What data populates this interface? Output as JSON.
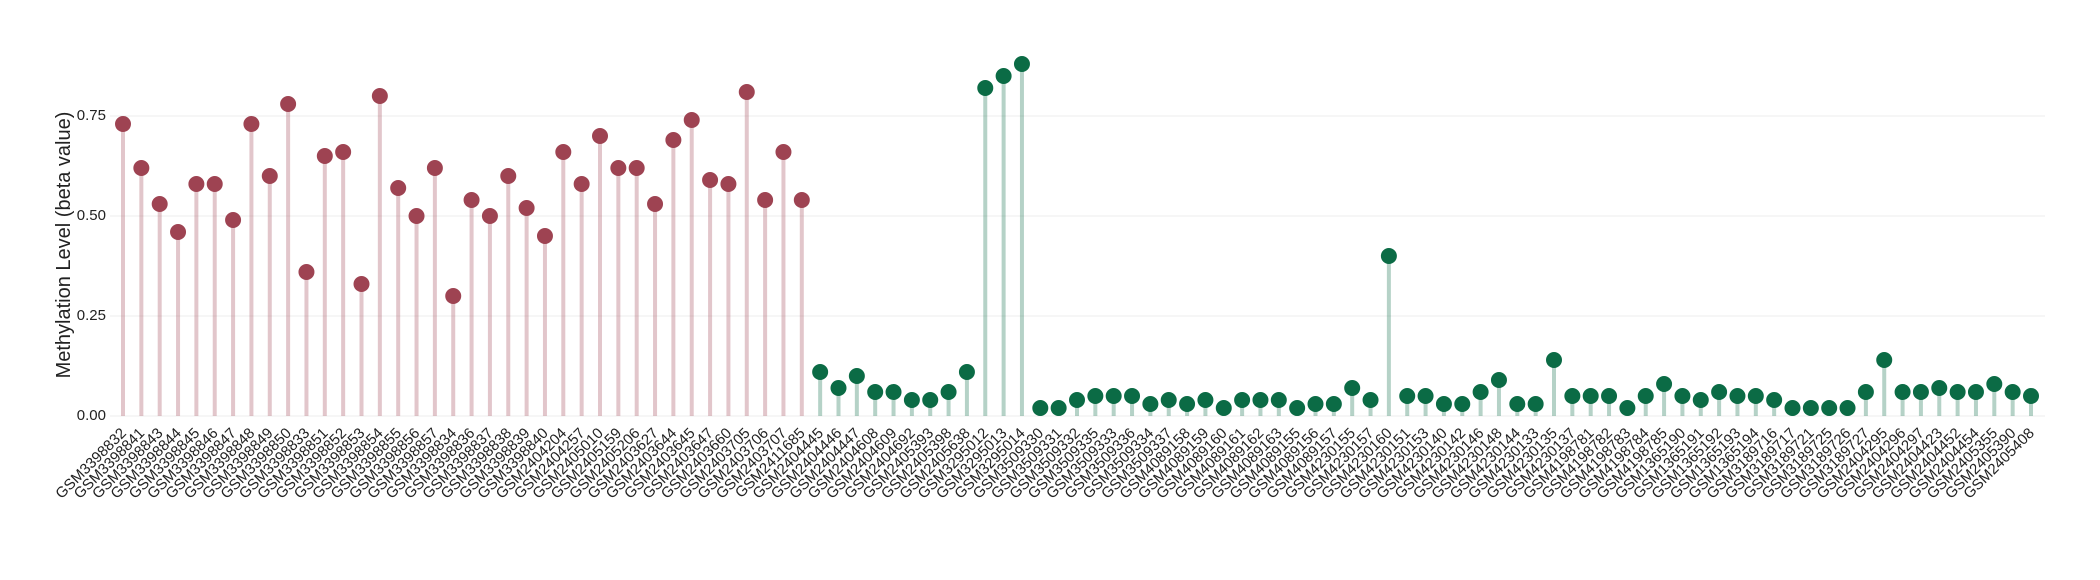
{
  "chart_data": {
    "type": "lollipop",
    "y_label": "Methylation Level (beta value)",
    "categories": [
      "GSM3398832",
      "GSM3398841",
      "GSM3398843",
      "GSM3398844",
      "GSM3398845",
      "GSM3398846",
      "GSM3398847",
      "GSM3398848",
      "GSM3398849",
      "GSM3398850",
      "GSM3398833",
      "GSM3398851",
      "GSM3398852",
      "GSM3398853",
      "GSM3398854",
      "GSM3398855",
      "GSM3398856",
      "GSM3398857",
      "GSM3398834",
      "GSM3398836",
      "GSM3398837",
      "GSM3398838",
      "GSM3398839",
      "GSM3398840",
      "GSM2404204",
      "GSM2404257",
      "GSM2405010",
      "GSM2405159",
      "GSM2405206",
      "GSM2403627",
      "GSM2403644",
      "GSM2403645",
      "GSM2403647",
      "GSM2403660",
      "GSM2403705",
      "GSM2403706",
      "GSM2403707",
      "GSM2411685",
      "GSM2404445",
      "GSM2404446",
      "GSM2404447",
      "GSM2404608",
      "GSM2404609",
      "GSM2404692",
      "GSM2405393",
      "GSM2405398",
      "GSM2405638",
      "GSM3295012",
      "GSM3295013",
      "GSM3295014",
      "GSM3509330",
      "GSM3509331",
      "GSM3509332",
      "GSM3509335",
      "GSM3509333",
      "GSM3509336",
      "GSM3509334",
      "GSM3509337",
      "GSM4089158",
      "GSM4089159",
      "GSM4089160",
      "GSM4089161",
      "GSM4089162",
      "GSM4089163",
      "GSM4089155",
      "GSM4089156",
      "GSM4089157",
      "GSM4230155",
      "GSM4230157",
      "GSM4230160",
      "GSM4230151",
      "GSM4230153",
      "GSM4230140",
      "GSM4230142",
      "GSM4230146",
      "GSM4230148",
      "GSM4230144",
      "GSM4230133",
      "GSM4230135",
      "GSM4230137",
      "GSM4198781",
      "GSM4198782",
      "GSM4198783",
      "GSM4198784",
      "GSM4198785",
      "GSM1365190",
      "GSM1365191",
      "GSM1365192",
      "GSM1365193",
      "GSM1365194",
      "GSM3189716",
      "GSM3189717",
      "GSM3189721",
      "GSM3189725",
      "GSM3189726",
      "GSM3189727",
      "GSM2404295",
      "GSM2404296",
      "GSM2404297",
      "GSM2404423",
      "GSM2404452",
      "GSM2404454",
      "GSM2405355",
      "GSM2405390",
      "GSM2405408"
    ],
    "values": [
      0.73,
      0.62,
      0.53,
      0.46,
      0.58,
      0.58,
      0.49,
      0.73,
      0.6,
      0.78,
      0.36,
      0.65,
      0.66,
      0.33,
      0.8,
      0.57,
      0.5,
      0.62,
      0.3,
      0.54,
      0.5,
      0.6,
      0.52,
      0.45,
      0.66,
      0.58,
      0.7,
      0.62,
      0.62,
      0.53,
      0.69,
      0.74,
      0.59,
      0.58,
      0.81,
      0.54,
      0.66,
      0.54,
      0.11,
      0.07,
      0.1,
      0.06,
      0.06,
      0.04,
      0.04,
      0.06,
      0.11,
      0.82,
      0.85,
      0.88,
      0.02,
      0.02,
      0.04,
      0.05,
      0.05,
      0.05,
      0.03,
      0.04,
      0.03,
      0.04,
      0.02,
      0.04,
      0.04,
      0.04,
      0.02,
      0.03,
      0.03,
      0.07,
      0.04,
      0.4,
      0.05,
      0.05,
      0.03,
      0.03,
      0.06,
      0.09,
      0.03,
      0.03,
      0.14,
      0.05,
      0.05,
      0.05,
      0.02,
      0.05,
      0.08,
      0.05,
      0.04,
      0.06,
      0.05,
      0.05,
      0.04,
      0.02,
      0.02,
      0.02,
      0.02,
      0.06,
      0.14,
      0.06,
      0.06,
      0.07,
      0.06,
      0.06,
      0.08,
      0.06,
      0.05
    ],
    "colors": [
      "#9e4352",
      "#9e4352",
      "#9e4352",
      "#9e4352",
      "#9e4352",
      "#9e4352",
      "#9e4352",
      "#9e4352",
      "#9e4352",
      "#9e4352",
      "#9e4352",
      "#9e4352",
      "#9e4352",
      "#9e4352",
      "#9e4352",
      "#9e4352",
      "#9e4352",
      "#9e4352",
      "#9e4352",
      "#9e4352",
      "#9e4352",
      "#9e4352",
      "#9e4352",
      "#9e4352",
      "#9e4352",
      "#9e4352",
      "#9e4352",
      "#9e4352",
      "#9e4352",
      "#9e4352",
      "#9e4352",
      "#9e4352",
      "#9e4352",
      "#9e4352",
      "#9e4352",
      "#9e4352",
      "#9e4352",
      "#9e4352",
      "#0b6b45",
      "#0b6b45",
      "#0b6b45",
      "#0b6b45",
      "#0b6b45",
      "#0b6b45",
      "#0b6b45",
      "#0b6b45",
      "#0b6b45",
      "#0b6b45",
      "#0b6b45",
      "#0b6b45",
      "#0b6b45",
      "#0b6b45",
      "#0b6b45",
      "#0b6b45",
      "#0b6b45",
      "#0b6b45",
      "#0b6b45",
      "#0b6b45",
      "#0b6b45",
      "#0b6b45",
      "#0b6b45",
      "#0b6b45",
      "#0b6b45",
      "#0b6b45",
      "#0b6b45",
      "#0b6b45",
      "#0b6b45",
      "#0b6b45",
      "#0b6b45",
      "#0b6b45",
      "#0b6b45",
      "#0b6b45",
      "#0b6b45",
      "#0b6b45",
      "#0b6b45",
      "#0b6b45",
      "#0b6b45",
      "#0b6b45",
      "#0b6b45",
      "#0b6b45",
      "#0b6b45",
      "#0b6b45",
      "#0b6b45",
      "#0b6b45",
      "#0b6b45",
      "#0b6b45",
      "#0b6b45",
      "#0b6b45",
      "#0b6b45",
      "#0b6b45",
      "#0b6b45",
      "#0b6b45",
      "#0b6b45",
      "#0b6b45",
      "#0b6b45",
      "#0b6b45",
      "#0b6b45",
      "#0b6b45",
      "#0b6b45",
      "#0b6b45",
      "#0b6b45",
      "#0b6b45",
      "#0b6b45",
      "#0b6b45",
      "#0b6b45"
    ],
    "ylim": [
      0,
      0.92
    ],
    "yticks": [
      {
        "value": 0,
        "label": "0.00"
      },
      {
        "value": 0.25,
        "label": "0.25"
      },
      {
        "value": 0.5,
        "label": "0.50"
      },
      {
        "value": 0.75,
        "label": "0.75"
      }
    ],
    "grid": true
  }
}
